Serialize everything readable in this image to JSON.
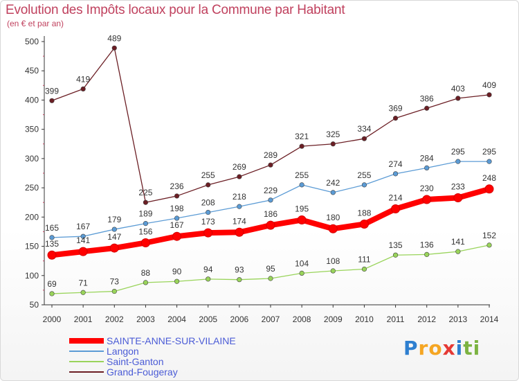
{
  "title": "Evolution des Impôts locaux pour la Commune par Habitant",
  "subtitle": "(en € et par an)",
  "chart_data": {
    "type": "line",
    "x": [
      "2000",
      "2001",
      "2002",
      "2003",
      "2004",
      "2005",
      "2006",
      "2007",
      "2008",
      "2009",
      "2010",
      "2011",
      "2012",
      "2013",
      "2014"
    ],
    "ylim": [
      50,
      500
    ],
    "yticks": [
      50,
      100,
      150,
      200,
      250,
      300,
      350,
      400,
      450,
      500
    ],
    "grid": false,
    "legend_position": "bottom-left",
    "series": [
      {
        "name": "Grand-Fougeray",
        "color": "#6b1e24",
        "values": [
          399,
          419,
          489,
          225,
          236,
          255,
          269,
          289,
          321,
          325,
          334,
          369,
          386,
          403,
          409
        ]
      },
      {
        "name": "Langon",
        "color": "#5b9bd5",
        "values": [
          165,
          167,
          179,
          189,
          198,
          208,
          218,
          229,
          255,
          242,
          255,
          274,
          284,
          295,
          295
        ]
      },
      {
        "name": "SAINTE-ANNE-SUR-VILAINE",
        "color": "#ff0000",
        "values": [
          135,
          141,
          147,
          156,
          167,
          173,
          174,
          186,
          195,
          180,
          188,
          214,
          230,
          233,
          248
        ]
      },
      {
        "name": "Saint-Ganton",
        "color": "#99d45a",
        "values": [
          69,
          71,
          73,
          88,
          90,
          94,
          93,
          95,
          104,
          108,
          111,
          135,
          136,
          141,
          152
        ]
      }
    ]
  },
  "legend": [
    {
      "label": "SAINTE-ANNE-SUR-VILAINE",
      "color": "#ff0000"
    },
    {
      "label": "Langon",
      "color": "#5b9bd5"
    },
    {
      "label": "Saint-Ganton",
      "color": "#99d45a"
    },
    {
      "label": "Grand-Fougeray",
      "color": "#6b1e24"
    }
  ],
  "logo": {
    "letters": [
      "P",
      "r",
      "o",
      "x",
      "i",
      "t",
      "i"
    ],
    "colors": [
      "#2e7fd0",
      "#f5a623",
      "#f5a623",
      "#e53935",
      "#2e7fd0",
      "#7cb342",
      "#7cb342"
    ]
  }
}
